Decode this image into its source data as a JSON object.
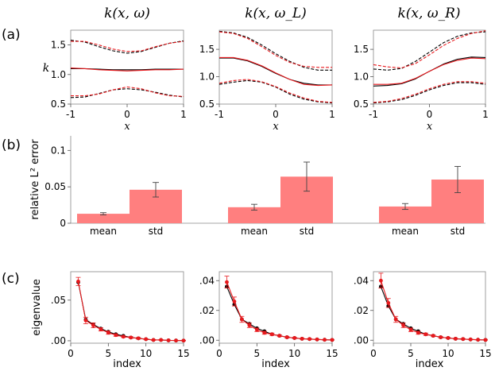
{
  "panel_labels": [
    "(a)",
    "(b)",
    "(c)"
  ],
  "colors": {
    "true": "#000000",
    "pred": "#e8191d",
    "bar": "#ff7f7f",
    "errbar": "#444444"
  },
  "chart_data": [
    {
      "type": "line",
      "row": "a",
      "title": "k(x, ω)",
      "xlabel": "x",
      "ylabel": "k",
      "xlim": [
        -1,
        1
      ],
      "ylim": [
        0.5,
        1.75
      ],
      "xticks": [
        "-1",
        "0",
        "1"
      ],
      "xtick_values": [
        -1,
        0,
        1
      ],
      "yticks": [
        "0.5",
        "1.0",
        "1.5"
      ],
      "ytick_values": [
        0.5,
        1.0,
        1.5
      ],
      "x": [
        -1,
        -0.75,
        -0.5,
        -0.25,
        0,
        0.25,
        0.5,
        0.75,
        1
      ],
      "series": [
        {
          "name": "upper (true)",
          "style": "dashed",
          "color": "#000000",
          "values": [
            1.58,
            1.55,
            1.47,
            1.4,
            1.36,
            1.39,
            1.46,
            1.53,
            1.57
          ]
        },
        {
          "name": "upper (pred)",
          "style": "dashed",
          "color": "#e8191d",
          "values": [
            1.56,
            1.56,
            1.5,
            1.43,
            1.39,
            1.4,
            1.47,
            1.53,
            1.56
          ]
        },
        {
          "name": "mean (true)",
          "style": "solid",
          "color": "#000000",
          "values": [
            1.1,
            1.1,
            1.09,
            1.08,
            1.08,
            1.08,
            1.09,
            1.09,
            1.09
          ]
        },
        {
          "name": "mean (pred)",
          "style": "solid",
          "color": "#e8191d",
          "values": [
            1.11,
            1.1,
            1.08,
            1.07,
            1.06,
            1.07,
            1.08,
            1.08,
            1.09
          ]
        },
        {
          "name": "lower (true)",
          "style": "dashed",
          "color": "#000000",
          "values": [
            0.61,
            0.62,
            0.68,
            0.74,
            0.76,
            0.74,
            0.7,
            0.65,
            0.62
          ]
        },
        {
          "name": "lower (pred)",
          "style": "dashed",
          "color": "#e8191d",
          "values": [
            0.64,
            0.64,
            0.67,
            0.74,
            0.79,
            0.76,
            0.69,
            0.64,
            0.63
          ]
        }
      ]
    },
    {
      "type": "line",
      "row": "a",
      "title": "k(x, ω_L)",
      "xlabel": "x",
      "ylabel": "",
      "xlim": [
        -1,
        1
      ],
      "ylim": [
        0.5,
        1.85
      ],
      "xticks": [
        "-1",
        "0",
        "1"
      ],
      "xtick_values": [
        -1,
        0,
        1
      ],
      "yticks": [
        "0.5",
        "1.0",
        "1.5"
      ],
      "ytick_values": [
        0.5,
        1.0,
        1.5
      ],
      "x": [
        -1,
        -0.75,
        -0.5,
        -0.25,
        0,
        0.25,
        0.5,
        0.75,
        1
      ],
      "series": [
        {
          "name": "upper (true)",
          "style": "dashed",
          "color": "#000000",
          "values": [
            1.83,
            1.8,
            1.72,
            1.58,
            1.42,
            1.28,
            1.17,
            1.12,
            1.12
          ]
        },
        {
          "name": "upper (pred)",
          "style": "dashed",
          "color": "#e8191d",
          "values": [
            1.82,
            1.79,
            1.7,
            1.55,
            1.39,
            1.26,
            1.19,
            1.17,
            1.17
          ]
        },
        {
          "name": "mean (true)",
          "style": "solid",
          "color": "#000000",
          "values": [
            1.34,
            1.34,
            1.29,
            1.19,
            1.06,
            0.95,
            0.88,
            0.85,
            0.85
          ]
        },
        {
          "name": "mean (pred)",
          "style": "solid",
          "color": "#e8191d",
          "values": [
            1.35,
            1.35,
            1.3,
            1.2,
            1.07,
            0.95,
            0.86,
            0.84,
            0.85
          ]
        },
        {
          "name": "lower (true)",
          "style": "dashed",
          "color": "#000000",
          "values": [
            0.86,
            0.9,
            0.93,
            0.9,
            0.81,
            0.68,
            0.59,
            0.54,
            0.52
          ]
        },
        {
          "name": "lower (pred)",
          "style": "dashed",
          "color": "#e8191d",
          "values": [
            0.88,
            0.93,
            0.95,
            0.91,
            0.82,
            0.7,
            0.61,
            0.55,
            0.53
          ]
        }
      ]
    },
    {
      "type": "line",
      "row": "a",
      "title": "k(x, ω_R)",
      "xlabel": "x",
      "ylabel": "",
      "xlim": [
        -1,
        1
      ],
      "ylim": [
        0.5,
        1.85
      ],
      "xticks": [
        "-1",
        "0",
        "1"
      ],
      "xtick_values": [
        -1,
        0,
        1
      ],
      "yticks": [
        "0.5",
        "1.0",
        "1.5"
      ],
      "ytick_values": [
        0.5,
        1.0,
        1.5
      ],
      "x": [
        -1,
        -0.75,
        -0.5,
        -0.25,
        0,
        0.25,
        0.5,
        0.75,
        1
      ],
      "series": [
        {
          "name": "upper (true)",
          "style": "dashed",
          "color": "#000000",
          "values": [
            1.14,
            1.12,
            1.15,
            1.28,
            1.45,
            1.62,
            1.74,
            1.8,
            1.82
          ]
        },
        {
          "name": "upper (pred)",
          "style": "dashed",
          "color": "#e8191d",
          "values": [
            1.22,
            1.18,
            1.16,
            1.24,
            1.4,
            1.57,
            1.7,
            1.79,
            1.84
          ]
        },
        {
          "name": "mean (true)",
          "style": "solid",
          "color": "#000000",
          "values": [
            0.83,
            0.84,
            0.87,
            0.96,
            1.1,
            1.23,
            1.32,
            1.36,
            1.35
          ]
        },
        {
          "name": "mean (pred)",
          "style": "solid",
          "color": "#e8191d",
          "values": [
            0.86,
            0.86,
            0.88,
            0.97,
            1.1,
            1.22,
            1.3,
            1.34,
            1.33
          ]
        },
        {
          "name": "lower (true)",
          "style": "dashed",
          "color": "#000000",
          "values": [
            0.52,
            0.54,
            0.58,
            0.66,
            0.76,
            0.84,
            0.89,
            0.89,
            0.86
          ]
        },
        {
          "name": "lower (pred)",
          "style": "dashed",
          "color": "#e8191d",
          "values": [
            0.53,
            0.55,
            0.6,
            0.68,
            0.78,
            0.86,
            0.91,
            0.91,
            0.88
          ]
        }
      ]
    },
    {
      "type": "bar",
      "row": "b",
      "title": "",
      "ylabel": "relative L² error",
      "ylim": [
        0,
        0.12
      ],
      "yticks": [
        "0",
        "0.05",
        "0.1"
      ],
      "ytick_values": [
        0,
        0.05,
        0.1
      ],
      "groups": [
        {
          "categories": [
            "mean",
            "std"
          ],
          "values": [
            0.013,
            0.046
          ],
          "errors": [
            0.0015,
            0.01
          ]
        },
        {
          "categories": [
            "mean",
            "std"
          ],
          "values": [
            0.022,
            0.064
          ],
          "errors": [
            0.004,
            0.02
          ]
        },
        {
          "categories": [
            "mean",
            "std"
          ],
          "values": [
            0.023,
            0.06
          ],
          "errors": [
            0.004,
            0.018
          ]
        }
      ]
    },
    {
      "type": "line",
      "row": "c",
      "title": "",
      "xlabel": "index",
      "ylabel": "eigenvalue",
      "xlim": [
        0,
        15
      ],
      "ylim": [
        -0.003,
        0.085
      ],
      "xticks": [
        "0",
        "5",
        "10",
        "15"
      ],
      "xtick_values": [
        0,
        5,
        10,
        15
      ],
      "yticks": [
        ".00",
        ".05"
      ],
      "ytick_values": [
        0,
        0.05
      ],
      "x": [
        1,
        2,
        3,
        4,
        5,
        6,
        7,
        8,
        9,
        10,
        11,
        12,
        13,
        14,
        15
      ],
      "series": [
        {
          "name": "true",
          "color": "#000000",
          "values": [
            0.072,
            0.026,
            0.02,
            0.015,
            0.011,
            0.008,
            0.006,
            0.004,
            0.003,
            0.002,
            0.001,
            0.001,
            0.0005,
            0.0003,
            0.0002
          ]
        },
        {
          "name": "predicted",
          "color": "#e8191d",
          "values": [
            0.073,
            0.025,
            0.019,
            0.014,
            0.01,
            0.007,
            0.005,
            0.004,
            0.003,
            0.002,
            0.001,
            0.001,
            0.0005,
            0.0003,
            0.0002
          ],
          "errors": [
            0.005,
            0.004,
            0.003,
            0.002,
            0.002,
            0.0015,
            0.001,
            0.001,
            0.001,
            0.0005,
            0.0005,
            0.0005,
            0.0003,
            0.0002,
            0.0002
          ]
        }
      ]
    },
    {
      "type": "line",
      "row": "c",
      "title": "",
      "xlabel": "index",
      "ylabel": "",
      "xlim": [
        0,
        15
      ],
      "ylim": [
        -0.002,
        0.046
      ],
      "xticks": [
        "0",
        "5",
        "10",
        "15"
      ],
      "xtick_values": [
        0,
        5,
        10,
        15
      ],
      "yticks": [
        ".00",
        ".02",
        ".04"
      ],
      "ytick_values": [
        0,
        0.02,
        0.04
      ],
      "x": [
        1,
        2,
        3,
        4,
        5,
        6,
        7,
        8,
        9,
        10,
        11,
        12,
        13,
        14,
        15
      ],
      "series": [
        {
          "name": "true",
          "color": "#000000",
          "values": [
            0.036,
            0.024,
            0.014,
            0.011,
            0.008,
            0.006,
            0.004,
            0.003,
            0.002,
            0.0015,
            0.001,
            0.0008,
            0.0005,
            0.0003,
            0.0002
          ]
        },
        {
          "name": "predicted",
          "color": "#e8191d",
          "values": [
            0.039,
            0.026,
            0.014,
            0.01,
            0.007,
            0.005,
            0.004,
            0.003,
            0.002,
            0.0015,
            0.001,
            0.0008,
            0.0005,
            0.0003,
            0.0002
          ],
          "errors": [
            0.004,
            0.003,
            0.002,
            0.0015,
            0.0012,
            0.001,
            0.0008,
            0.0006,
            0.0005,
            0.0004,
            0.0003,
            0.0003,
            0.0002,
            0.0002,
            0.0001
          ]
        }
      ]
    },
    {
      "type": "line",
      "row": "c",
      "title": "",
      "xlabel": "index",
      "ylabel": "",
      "xlim": [
        0,
        15
      ],
      "ylim": [
        -0.002,
        0.046
      ],
      "xticks": [
        "0",
        "5",
        "10",
        "15"
      ],
      "xtick_values": [
        0,
        5,
        10,
        15
      ],
      "yticks": [
        ".00",
        ".02",
        ".04"
      ],
      "ytick_values": [
        0,
        0.02,
        0.04
      ],
      "x": [
        1,
        2,
        3,
        4,
        5,
        6,
        7,
        8,
        9,
        10,
        11,
        12,
        13,
        14,
        15
      ],
      "series": [
        {
          "name": "true",
          "color": "#000000",
          "values": [
            0.036,
            0.023,
            0.014,
            0.011,
            0.008,
            0.006,
            0.004,
            0.003,
            0.002,
            0.0015,
            0.001,
            0.0008,
            0.0005,
            0.0003,
            0.0002
          ]
        },
        {
          "name": "predicted",
          "color": "#e8191d",
          "values": [
            0.04,
            0.025,
            0.014,
            0.01,
            0.007,
            0.005,
            0.004,
            0.003,
            0.002,
            0.0015,
            0.001,
            0.0008,
            0.0005,
            0.0003,
            0.0002
          ],
          "errors": [
            0.005,
            0.003,
            0.002,
            0.0015,
            0.0012,
            0.001,
            0.0008,
            0.0006,
            0.0005,
            0.0004,
            0.0003,
            0.0003,
            0.0002,
            0.0002,
            0.0001
          ]
        }
      ]
    }
  ]
}
